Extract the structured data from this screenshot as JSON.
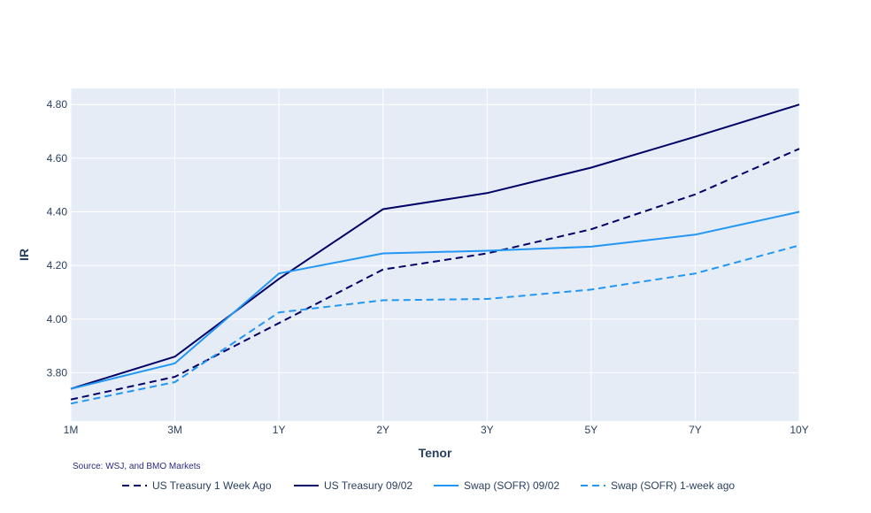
{
  "chart_data": {
    "type": "line",
    "title": "",
    "xlabel": "Tenor",
    "ylabel": "IR",
    "categories": [
      "1M",
      "3M",
      "1Y",
      "2Y",
      "3Y",
      "5Y",
      "7Y",
      "10Y"
    ],
    "ylim": [
      3.62,
      4.86
    ],
    "yticks": [
      "3.80",
      "4.00",
      "4.20",
      "4.40",
      "4.60",
      "4.80"
    ],
    "grid": true,
    "legend_position": "bottom",
    "source_note": "Source: WSJ, and BMO Markets",
    "series": [
      {
        "name": "US Treasury 1 Week Ago",
        "color": "#000066",
        "dash": "dashed",
        "values": [
          3.7,
          3.785,
          3.985,
          4.185,
          4.245,
          4.335,
          4.465,
          4.635
        ]
      },
      {
        "name": "US Treasury 09/02",
        "color": "#000066",
        "dash": "solid",
        "values": [
          3.74,
          3.86,
          4.15,
          4.41,
          4.47,
          4.565,
          4.68,
          4.8
        ]
      },
      {
        "name": "Swap (SOFR) 09/02",
        "color": "#2196f3",
        "dash": "solid",
        "values": [
          3.74,
          3.835,
          4.17,
          4.245,
          4.255,
          4.27,
          4.315,
          4.4
        ]
      },
      {
        "name": "Swap (SOFR) 1-week ago",
        "color": "#2196f3",
        "dash": "dashed",
        "values": [
          3.685,
          3.765,
          4.025,
          4.07,
          4.075,
          4.11,
          4.17,
          4.275
        ]
      }
    ]
  }
}
